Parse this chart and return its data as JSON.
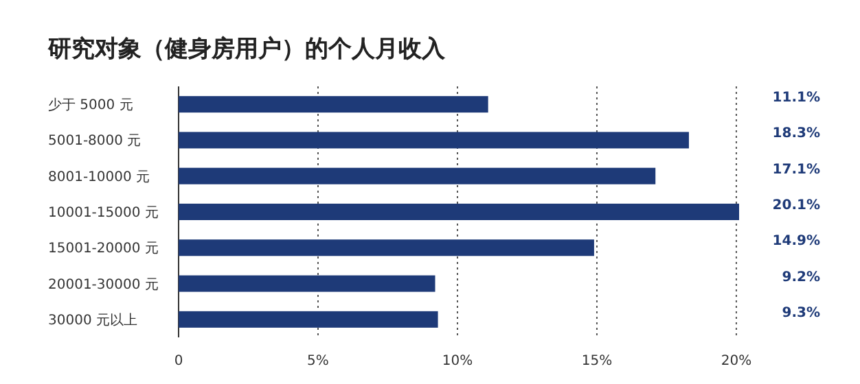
{
  "chart_data": {
    "type": "bar",
    "orientation": "horizontal",
    "title": "研究对象（健身房用户）的个人月收入",
    "categories": [
      "少于 5000 元",
      "5001-8000 元",
      "8001-10000 元",
      "10001-15000 元",
      "15001-20000 元",
      "20001-30000 元",
      "30000 元以上"
    ],
    "values": [
      11.1,
      18.3,
      17.1,
      20.1,
      14.9,
      9.2,
      9.3
    ],
    "value_labels": [
      "11.1%",
      "18.3%",
      "17.1%",
      "20.1%",
      "14.9%",
      "9.2%",
      "9.3%"
    ],
    "color": "#1e3a78",
    "xlim": [
      0,
      20.1
    ],
    "xticks": [
      0,
      {
        "value": 5,
        "label": "5%"
      },
      {
        "value": 10,
        "label": "10%"
      },
      {
        "value": 15,
        "label": "15%"
      },
      {
        "value": 20,
        "label": "20%"
      }
    ],
    "grid": "x"
  }
}
